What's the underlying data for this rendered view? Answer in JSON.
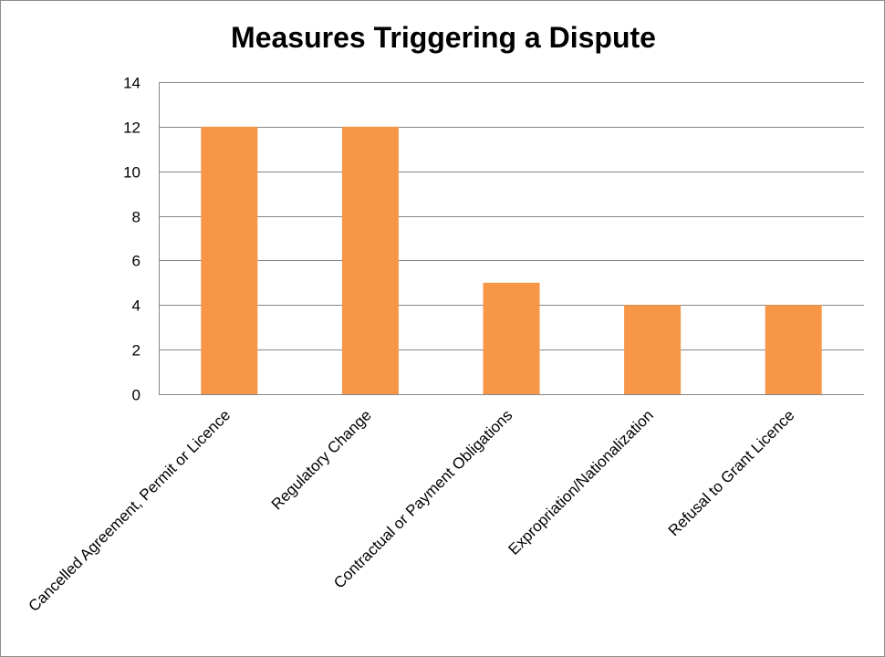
{
  "chart_data": {
    "type": "bar",
    "title": "Measures Triggering a Dispute",
    "xlabel": "",
    "ylabel": "",
    "categories": [
      "Cancelled Agreement, Permit or Licence",
      "Regulatory Change",
      "Contractual or Payment Obligations",
      "Expropriation/Nationalization",
      "Refusal to Grant Licence"
    ],
    "values": [
      12,
      12,
      5,
      4,
      4
    ],
    "ylim": [
      0,
      14
    ],
    "yticks": [
      0,
      2,
      4,
      6,
      8,
      10,
      12,
      14
    ],
    "grid": true,
    "legend": "none",
    "bar_color": "#f79646",
    "grid_color": "#868686"
  }
}
